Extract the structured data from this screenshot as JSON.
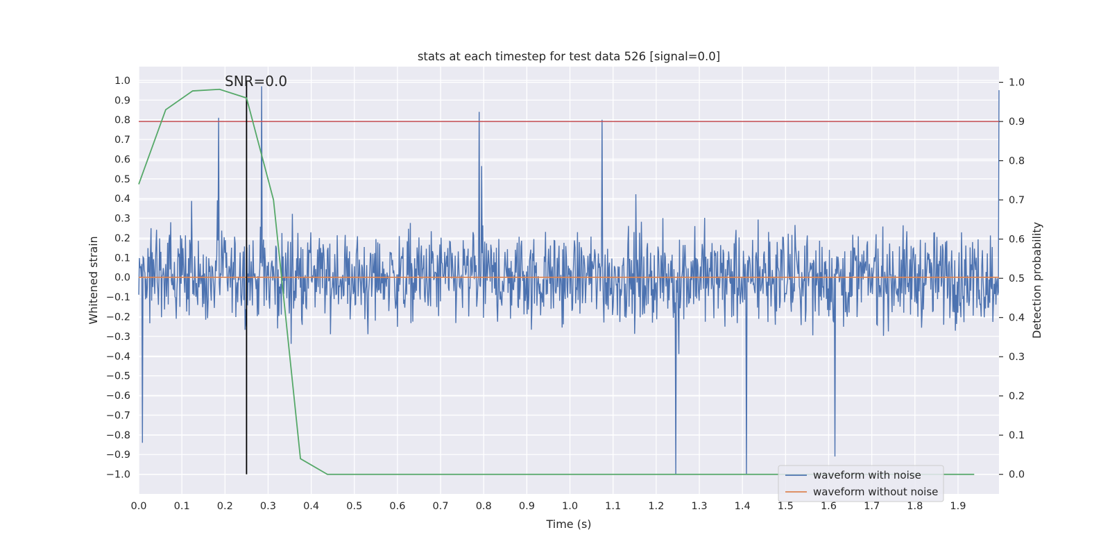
{
  "chart_data": {
    "type": "line",
    "title": "stats at each timestep for test data 526 [signal=0.0]",
    "xlabel": "Time (s)",
    "ylabel": "Whitened strain",
    "y2label": "Detection probability",
    "xlim": [
      0.0,
      1.995
    ],
    "ylim": [
      -1.1,
      1.07
    ],
    "y2lim": [
      -0.05,
      1.04
    ],
    "x_ticks": [
      0.0,
      0.1,
      0.2,
      0.3,
      0.4,
      0.5,
      0.6,
      0.7,
      0.8,
      0.9,
      1.0,
      1.1,
      1.2,
      1.3,
      1.4,
      1.5,
      1.6,
      1.7,
      1.8,
      1.9
    ],
    "x_tick_labels": [
      "0.0",
      "0.1",
      "0.2",
      "0.3",
      "0.4",
      "0.5",
      "0.6",
      "0.7",
      "0.8",
      "0.9",
      "1.0",
      "1.1",
      "1.2",
      "1.3",
      "1.4",
      "1.5",
      "1.6",
      "1.7",
      "1.8",
      "1.9"
    ],
    "y_ticks": [
      1.0,
      0.9,
      0.8,
      0.7,
      0.6,
      0.5,
      0.4,
      0.3,
      0.2,
      0.1,
      0.0,
      -0.1,
      -0.2,
      -0.3,
      -0.4,
      -0.5,
      -0.6,
      -0.7,
      -0.8,
      -0.9,
      -1.0
    ],
    "y_tick_labels": [
      "1.0",
      "0.9",
      "0.8",
      "0.7",
      "0.6",
      "0.5",
      "0.4",
      "0.3",
      "0.2",
      "0.1",
      "0.0",
      "−0.1",
      "−0.2",
      "−0.3",
      "−0.4",
      "−0.5",
      "−0.6",
      "−0.7",
      "−0.8",
      "−0.9",
      "−1.0"
    ],
    "y2_ticks": [
      1.0,
      0.9,
      0.8,
      0.7,
      0.6,
      0.5,
      0.4,
      0.3,
      0.2,
      0.1,
      0.0
    ],
    "y2_tick_labels": [
      "1.0",
      "0.9",
      "0.8",
      "0.7",
      "0.6",
      "0.5",
      "0.4",
      "0.3",
      "0.2",
      "0.1",
      "0.0"
    ],
    "grid": true,
    "legend_position": "lower-right",
    "series": [
      {
        "name": "waveform with noise",
        "color": "#4c72b0",
        "axis": "left",
        "kind": "noise",
        "x_start": 0.0,
        "x_end": 1.995,
        "value_range": [
          -1.0,
          0.97
        ],
        "notable_points": [
          {
            "x": 0.285,
            "y": 0.97
          },
          {
            "x": 1.995,
            "y": 0.95
          },
          {
            "x": 0.79,
            "y": 0.84
          },
          {
            "x": 0.185,
            "y": 0.81
          },
          {
            "x": 1.075,
            "y": 0.8
          },
          {
            "x": 1.245,
            "y": -1.0
          },
          {
            "x": 1.41,
            "y": -1.0
          },
          {
            "x": 0.008,
            "y": -0.84
          },
          {
            "x": 1.615,
            "y": -0.91
          }
        ]
      },
      {
        "name": "waveform without noise",
        "color": "#dd8452",
        "axis": "left",
        "x": [
          0.0,
          1.995
        ],
        "y": [
          0.0,
          0.0
        ]
      },
      {
        "name": "",
        "color": "#55a868",
        "axis": "right",
        "x": [
          0.0,
          0.0625,
          0.125,
          0.1875,
          0.25,
          0.3125,
          0.375,
          0.4375,
          0.5,
          0.5625,
          0.625,
          0.6875,
          0.75,
          0.8125,
          0.875,
          0.9375,
          1.0,
          1.0625,
          1.125,
          1.1875,
          1.25,
          1.3125,
          1.375,
          1.4375,
          1.5,
          1.5625,
          1.625,
          1.6875,
          1.75,
          1.8125,
          1.875,
          1.9375
        ],
        "y": [
          0.74,
          0.93,
          0.978,
          0.982,
          0.96,
          0.7,
          0.04,
          0.0,
          0.0,
          0.0,
          0.0,
          0.0,
          0.0,
          0.0,
          0.0,
          0.0,
          0.0,
          0.0,
          0.0,
          0.0,
          0.0,
          0.0,
          0.0,
          0.0,
          0.0,
          0.0,
          0.0,
          0.0,
          0.0,
          0.0,
          0.0,
          0.0
        ]
      }
    ],
    "reference_lines": [
      {
        "orientation": "horizontal",
        "axis": "right",
        "value": 0.9,
        "color": "#c44e52"
      },
      {
        "orientation": "vertical",
        "value": 0.25,
        "y_from": -1.0,
        "y_to": 1.0,
        "color": "#000000"
      }
    ],
    "annotations": [
      {
        "text": "SNR=0.0",
        "x": 0.2,
        "y": 1.0
      }
    ]
  }
}
